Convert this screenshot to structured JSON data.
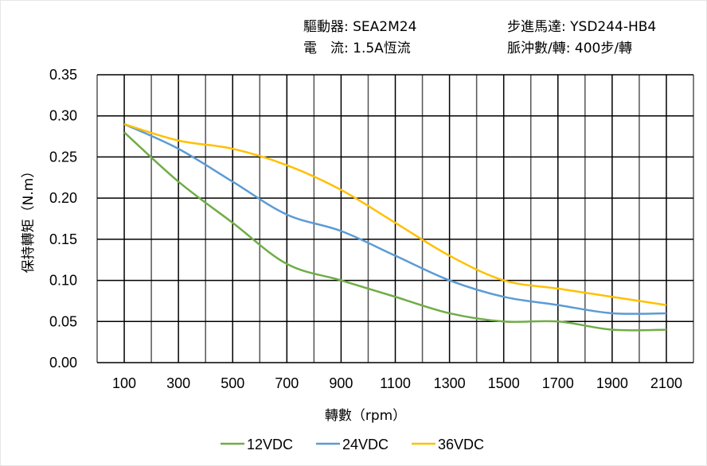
{
  "header": {
    "driver_label": "驅動器:",
    "driver_value": "SEA2M24",
    "current_label": "電　流:",
    "current_value": "1.5A恆流",
    "motor_label": "步進馬達:",
    "motor_value": "YSD244-HB4",
    "pulse_label": "脈沖數/轉:",
    "pulse_value": "400步/轉"
  },
  "chart_data": {
    "type": "line",
    "title": "",
    "xlabel": "轉數（rpm）",
    "ylabel": "保持轉矩（N.m）",
    "xlim": [
      0,
      2200
    ],
    "ylim": [
      0,
      0.35
    ],
    "grid": true,
    "legend_position": "bottom",
    "x": [
      100,
      300,
      500,
      700,
      900,
      1100,
      1300,
      1500,
      1700,
      1900,
      2100
    ],
    "xticks": [
      "100",
      "300",
      "500",
      "700",
      "900",
      "1100",
      "1300",
      "1500",
      "1700",
      "1900",
      "2100"
    ],
    "yticks": [
      "0.00",
      "0.05",
      "0.10",
      "0.15",
      "0.20",
      "0.25",
      "0.30",
      "0.35"
    ],
    "series": [
      {
        "name": "12VDC",
        "color": "#70ad47",
        "values": [
          0.28,
          0.22,
          0.17,
          0.12,
          0.1,
          0.08,
          0.06,
          0.05,
          0.05,
          0.04,
          0.04
        ]
      },
      {
        "name": "24VDC",
        "color": "#5b9bd5",
        "values": [
          0.29,
          0.26,
          0.22,
          0.18,
          0.16,
          0.13,
          0.1,
          0.08,
          0.07,
          0.06,
          0.06
        ]
      },
      {
        "name": "36VDC",
        "color": "#ffc000",
        "values": [
          0.29,
          0.27,
          0.26,
          0.24,
          0.21,
          0.17,
          0.13,
          0.1,
          0.09,
          0.08,
          0.07
        ]
      }
    ]
  }
}
